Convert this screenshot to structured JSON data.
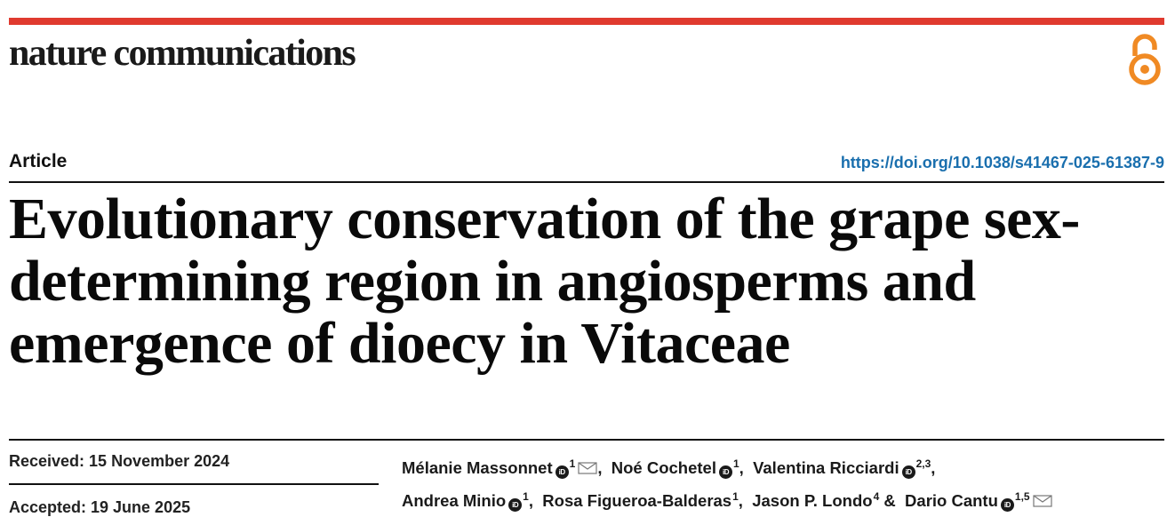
{
  "header": {
    "journal_name": "nature communications",
    "accent_color": "#e03a2f",
    "open_access_icon": "open-access-lock-icon"
  },
  "article": {
    "type": "Article",
    "doi": "https://doi.org/10.1038/s41467-025-61387-9",
    "title": "Evolutionary conservation of the grape sex-determining region in angiosperms and emergence of dioecy in Vitaceae"
  },
  "dates": {
    "received": "Received: 15 November 2024",
    "accepted": "Accepted: 19 June 2025"
  },
  "orcid_label": "iD",
  "authors": [
    {
      "name": "Mélanie Massonnet",
      "aff": "1",
      "mail": true,
      "sep": ", "
    },
    {
      "name": "Noé Cochetel",
      "aff": "1",
      "sep": ", "
    },
    {
      "name": "Valentina Ricciardi",
      "aff": "2,3",
      "sep": ","
    },
    {
      "name": "Andrea Minio",
      "aff": "1",
      "sep": ", "
    },
    {
      "name": "Rosa Figueroa-Balderas",
      "aff": "1",
      "sep": ", "
    },
    {
      "name": "Jason P. Londo",
      "aff": "4",
      "sep": " & "
    },
    {
      "name": "Dario Cantu",
      "aff": "1,5",
      "mail": true,
      "sep": ""
    }
  ]
}
